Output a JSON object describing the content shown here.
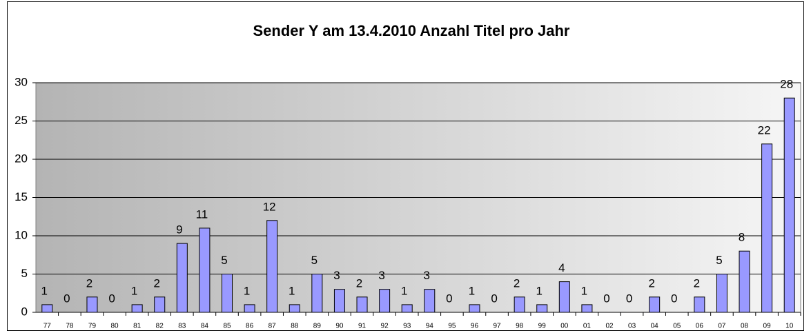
{
  "chart_data": {
    "type": "bar",
    "title": "Sender Y am 13.4.2010 Anzahl Titel pro Jahr",
    "categories": [
      "77",
      "78",
      "79",
      "80",
      "81",
      "82",
      "83",
      "84",
      "85",
      "86",
      "87",
      "88",
      "89",
      "90",
      "91",
      "92",
      "93",
      "94",
      "95",
      "96",
      "97",
      "98",
      "99",
      "00",
      "01",
      "02",
      "03",
      "04",
      "05",
      "06",
      "07",
      "08",
      "09",
      "10"
    ],
    "values": [
      1,
      0,
      2,
      0,
      1,
      2,
      9,
      11,
      5,
      1,
      12,
      1,
      5,
      3,
      2,
      3,
      1,
      3,
      0,
      1,
      0,
      2,
      1,
      4,
      1,
      0,
      0,
      2,
      0,
      2,
      5,
      8,
      22,
      28
    ],
    "color": "#9999ff",
    "ylim": [
      0,
      30
    ],
    "yticks": [
      0,
      5,
      10,
      15,
      20,
      25,
      30
    ],
    "grid": true
  }
}
